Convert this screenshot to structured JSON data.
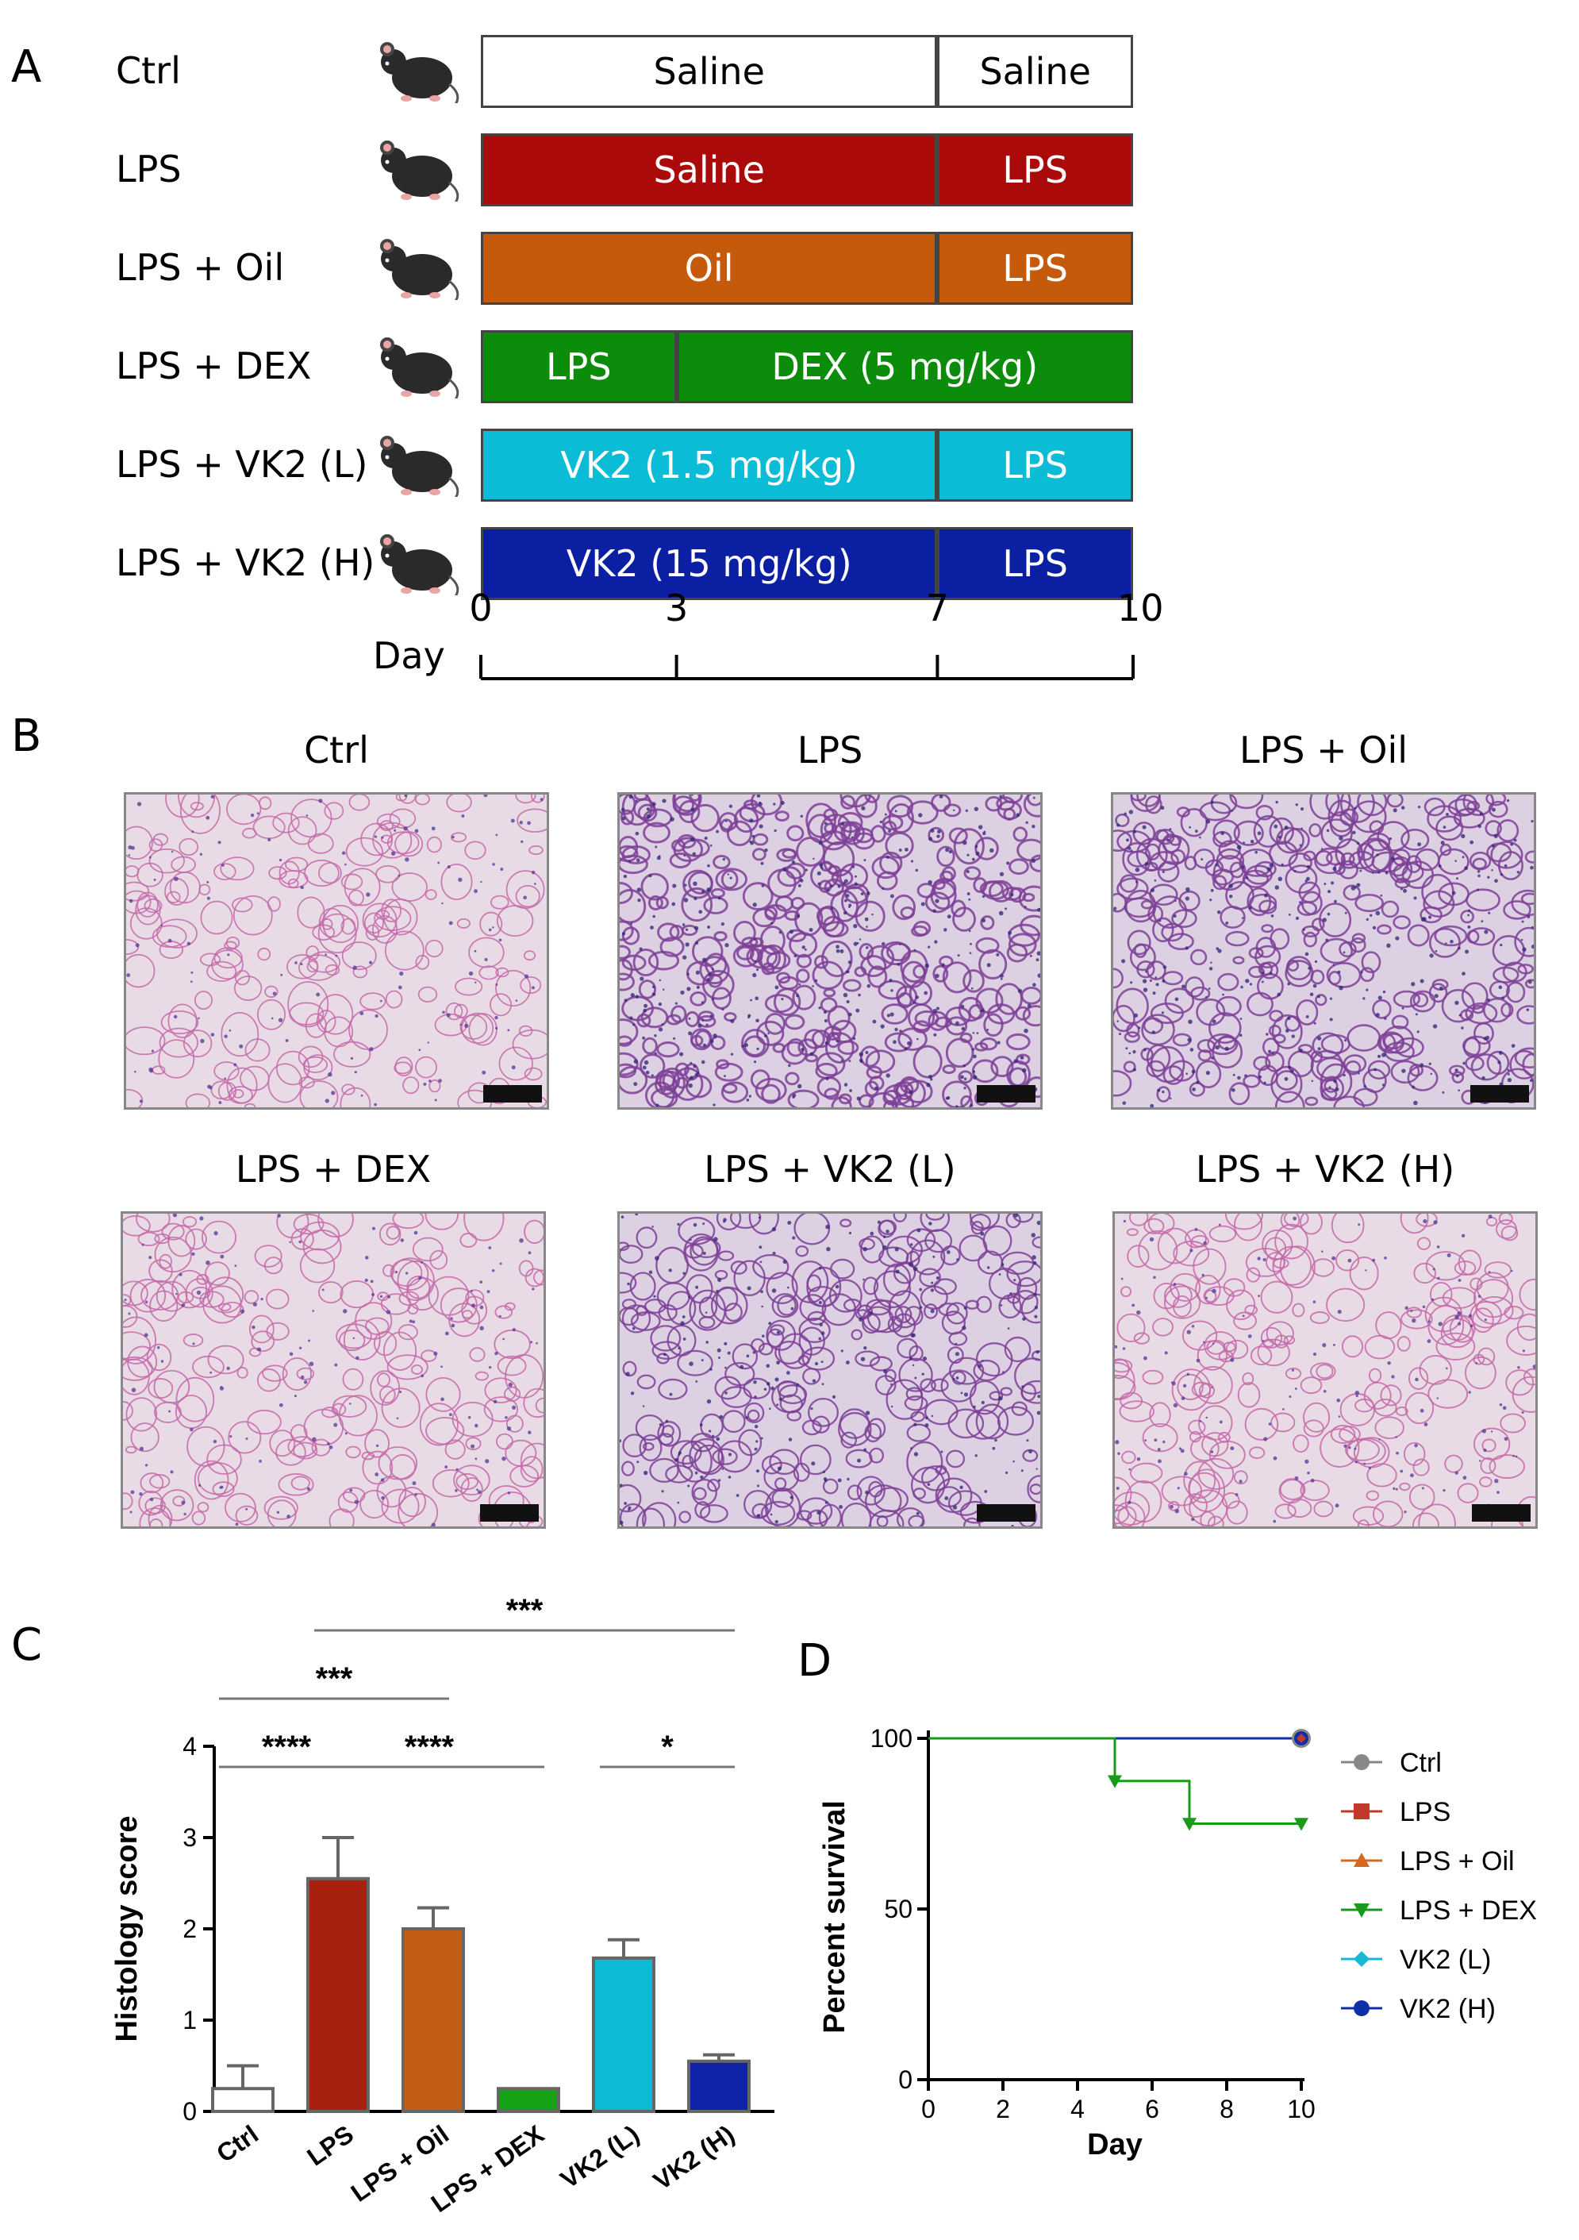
{
  "panels": {
    "a": "A",
    "b": "B",
    "c": "C",
    "d": "D"
  },
  "panel_a": {
    "rows": [
      {
        "label": "Ctrl",
        "segments": [
          {
            "text": "Saline",
            "bg": "#ffffff",
            "fg": "#000000",
            "from": 0,
            "to": 7
          },
          {
            "text": "Saline",
            "bg": "#ffffff",
            "fg": "#000000",
            "from": 7,
            "to": 10
          }
        ]
      },
      {
        "label": "LPS",
        "segments": [
          {
            "text": "Saline",
            "bg": "#ab0a0a",
            "fg": "#ffffff",
            "from": 0,
            "to": 7
          },
          {
            "text": "LPS",
            "bg": "#ab0a0a",
            "fg": "#ffffff",
            "from": 7,
            "to": 10
          }
        ]
      },
      {
        "label": "LPS + Oil",
        "segments": [
          {
            "text": "Oil",
            "bg": "#c55a0b",
            "fg": "#ffffff",
            "from": 0,
            "to": 7
          },
          {
            "text": "LPS",
            "bg": "#c55a0b",
            "fg": "#ffffff",
            "from": 7,
            "to": 10
          }
        ]
      },
      {
        "label": "LPS + DEX",
        "segments": [
          {
            "text": "LPS",
            "bg": "#0b8c0b",
            "fg": "#ffffff",
            "from": 0,
            "to": 3
          },
          {
            "text": "DEX (5 mg/kg)",
            "bg": "#0b8c0b",
            "fg": "#ffffff",
            "from": 3,
            "to": 10
          }
        ]
      },
      {
        "label": "LPS + VK2 (L)",
        "segments": [
          {
            "text": "VK2 (1.5 mg/kg)",
            "bg": "#0bbcd6",
            "fg": "#ffffff",
            "from": 0,
            "to": 7
          },
          {
            "text": "LPS",
            "bg": "#0bbcd6",
            "fg": "#ffffff",
            "from": 7,
            "to": 10
          }
        ]
      },
      {
        "label": "LPS + VK2 (H)",
        "segments": [
          {
            "text": "VK2 (15 mg/kg)",
            "bg": "#0b1fa3",
            "fg": "#ffffff",
            "from": 0,
            "to": 7
          },
          {
            "text": "LPS",
            "bg": "#0b1fa3",
            "fg": "#ffffff",
            "from": 7,
            "to": 10
          }
        ]
      }
    ],
    "day_label": "Day",
    "day_ticks": [
      "0",
      "3",
      "7",
      "10"
    ]
  },
  "panel_b": {
    "images": [
      {
        "title": "Ctrl",
        "density": 0.18,
        "tone": "pink"
      },
      {
        "title": "LPS",
        "density": 0.75,
        "tone": "purple"
      },
      {
        "title": "LPS + Oil",
        "density": 0.6,
        "tone": "purple"
      },
      {
        "title": "LPS + DEX",
        "density": 0.22,
        "tone": "pink"
      },
      {
        "title": "LPS + VK2 (L)",
        "density": 0.45,
        "tone": "purple"
      },
      {
        "title": "LPS + VK2 (H)",
        "density": 0.25,
        "tone": "pink"
      }
    ]
  },
  "chart_data": [
    {
      "type": "bar",
      "ylabel": "Histology score",
      "ylim": [
        0,
        4
      ],
      "yticks": [
        "0",
        "1",
        "2",
        "3",
        "4"
      ],
      "categories": [
        "Ctrl",
        "LPS",
        "LPS + Oil",
        "LPS + DEX",
        "VK2 (L)",
        "VK2 (H)"
      ],
      "values": [
        0.25,
        2.55,
        2.0,
        0.25,
        1.68,
        0.55
      ],
      "errors": [
        0.25,
        0.45,
        0.23,
        0.0,
        0.2,
        0.07
      ],
      "colors": [
        "#ffffff",
        "#a8200f",
        "#c35d13",
        "#15a315",
        "#0cbcd4",
        "#0e23a8"
      ],
      "significance": [
        {
          "label": "****",
          "from": 0,
          "to": 1
        },
        {
          "label": "***",
          "from": 0,
          "to": 2
        },
        {
          "label": "****",
          "from": 1,
          "to": 3
        },
        {
          "label": "***",
          "from": 1,
          "to": 5
        },
        {
          "label": "*",
          "from": 4,
          "to": 5
        }
      ]
    },
    {
      "type": "line",
      "xlabel": "Day",
      "ylabel": "Percent survival",
      "xlim": [
        0,
        10
      ],
      "ylim": [
        0,
        100
      ],
      "xticks": [
        "0",
        "2",
        "4",
        "6",
        "8",
        "10"
      ],
      "yticks": [
        "0",
        "50",
        "100"
      ],
      "legend_placement": "right",
      "series": [
        {
          "name": "Ctrl",
          "color": "#888888",
          "marker": "circle",
          "x": [
            0,
            10
          ],
          "y": [
            100,
            100
          ]
        },
        {
          "name": "LPS",
          "color": "#c0392b",
          "marker": "square",
          "x": [
            0,
            10
          ],
          "y": [
            100,
            100
          ]
        },
        {
          "name": "LPS + Oil",
          "color": "#d2691e",
          "marker": "triangle",
          "x": [
            0,
            10
          ],
          "y": [
            100,
            100
          ]
        },
        {
          "name": "LPS + DEX",
          "color": "#1a9a1a",
          "marker": "tri-down",
          "x": [
            0,
            5,
            5,
            7,
            7,
            10
          ],
          "y": [
            100,
            100,
            87.5,
            87.5,
            75,
            75
          ]
        },
        {
          "name": "VK2 (L)",
          "color": "#17b8d4",
          "marker": "diamond",
          "x": [
            0,
            10
          ],
          "y": [
            100,
            100
          ]
        },
        {
          "name": "VK2 (H)",
          "color": "#0f2fa8",
          "marker": "circle",
          "x": [
            0,
            10
          ],
          "y": [
            100,
            100
          ]
        }
      ]
    }
  ]
}
